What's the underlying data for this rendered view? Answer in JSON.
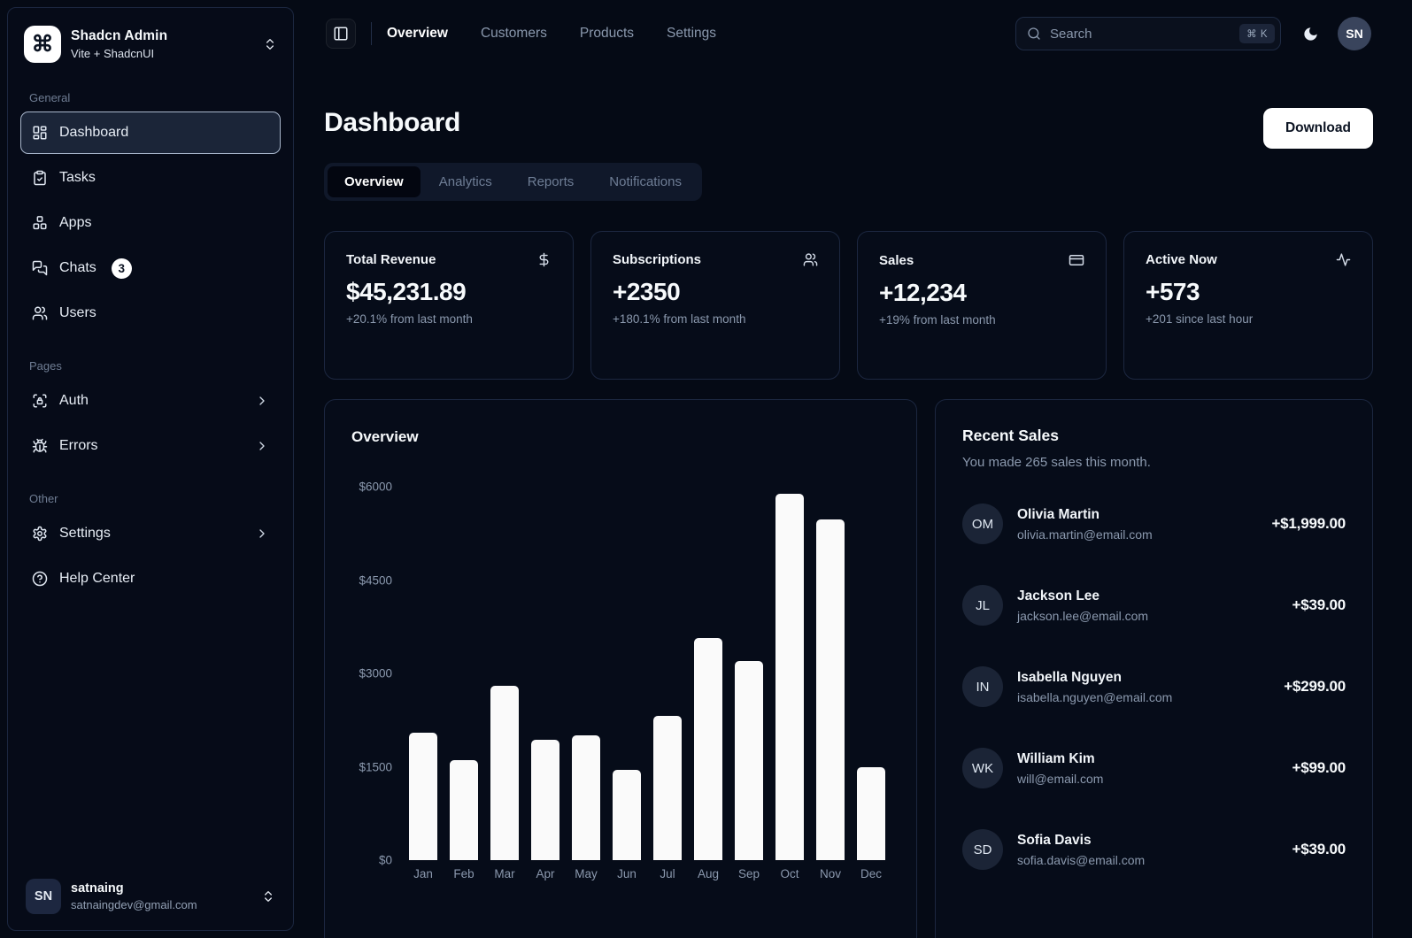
{
  "sidebar": {
    "team": {
      "name": "Shadcn Admin",
      "plan": "Vite + ShadcnUI",
      "logo_icon": "command-icon"
    },
    "groups": [
      {
        "label": "General",
        "items": [
          {
            "label": "Dashboard",
            "icon": "dashboard-icon",
            "active": true
          },
          {
            "label": "Tasks",
            "icon": "tasks-icon"
          },
          {
            "label": "Apps",
            "icon": "apps-icon"
          },
          {
            "label": "Chats",
            "icon": "chats-icon",
            "badge": "3"
          },
          {
            "label": "Users",
            "icon": "users-icon"
          }
        ]
      },
      {
        "label": "Pages",
        "items": [
          {
            "label": "Auth",
            "icon": "auth-icon",
            "has_submenu": true
          },
          {
            "label": "Errors",
            "icon": "bug-icon",
            "has_submenu": true
          }
        ]
      },
      {
        "label": "Other",
        "items": [
          {
            "label": "Settings",
            "icon": "gear-icon",
            "has_submenu": true
          },
          {
            "label": "Help Center",
            "icon": "help-icon"
          }
        ]
      }
    ],
    "user": {
      "initials": "SN",
      "name": "satnaing",
      "email": "satnaingdev@gmail.com"
    }
  },
  "topnav": {
    "links": [
      {
        "label": "Overview",
        "active": true
      },
      {
        "label": "Customers",
        "active": false
      },
      {
        "label": "Products",
        "active": false
      },
      {
        "label": "Settings",
        "active": false
      }
    ],
    "search": {
      "placeholder": "Search",
      "shortcut": "⌘ K"
    },
    "user_initials": "SN"
  },
  "page": {
    "title": "Dashboard",
    "download_label": "Download",
    "tabs": [
      {
        "label": "Overview",
        "active": true
      },
      {
        "label": "Analytics",
        "active": false
      },
      {
        "label": "Reports",
        "active": false
      },
      {
        "label": "Notifications",
        "active": false
      }
    ]
  },
  "stats": [
    {
      "label": "Total Revenue",
      "icon": "dollar-sign-icon",
      "value": "$45,231.89",
      "change": "+20.1% from last month"
    },
    {
      "label": "Subscriptions",
      "icon": "users-icon",
      "value": "+2350",
      "change": "+180.1% from last month"
    },
    {
      "label": "Sales",
      "icon": "credit-card-icon",
      "value": "+12,234",
      "change": "+19% from last month"
    },
    {
      "label": "Active Now",
      "icon": "activity-icon",
      "value": "+573",
      "change": "+201 since last hour"
    }
  ],
  "chart_data": {
    "type": "bar",
    "title": "Overview",
    "categories": [
      "Jan",
      "Feb",
      "Mar",
      "Apr",
      "May",
      "Jun",
      "Jul",
      "Aug",
      "Sep",
      "Oct",
      "Nov",
      "Dec"
    ],
    "values": [
      2050,
      1600,
      2800,
      1930,
      2000,
      1450,
      2320,
      3570,
      3200,
      5890,
      5470,
      1500
    ],
    "y_tick_labels": [
      "$0",
      "$1500",
      "$3000",
      "$4500",
      "$6000"
    ],
    "ylim": [
      0,
      6000
    ],
    "xlabel": "",
    "ylabel": "",
    "grid": false,
    "legend": false,
    "bar_color": "#fafafa"
  },
  "recent_sales": {
    "title": "Recent Sales",
    "subtitle": "You made 265 sales this month.",
    "items": [
      {
        "initials": "OM",
        "name": "Olivia Martin",
        "email": "olivia.martin@email.com",
        "amount": "+$1,999.00"
      },
      {
        "initials": "JL",
        "name": "Jackson Lee",
        "email": "jackson.lee@email.com",
        "amount": "+$39.00"
      },
      {
        "initials": "IN",
        "name": "Isabella Nguyen",
        "email": "isabella.nguyen@email.com",
        "amount": "+$299.00"
      },
      {
        "initials": "WK",
        "name": "William Kim",
        "email": "will@email.com",
        "amount": "+$99.00"
      },
      {
        "initials": "SD",
        "name": "Sofia Davis",
        "email": "sofia.davis@email.com",
        "amount": "+$39.00"
      }
    ]
  },
  "colors": {
    "background": "#050a15",
    "card_border": "#1c2740",
    "foreground": "#f7fafc",
    "muted_foreground": "#8b99ae",
    "bar": "#fafafa",
    "badge_bg": "#ffffff",
    "active_item_border": "#a9b7cc"
  }
}
